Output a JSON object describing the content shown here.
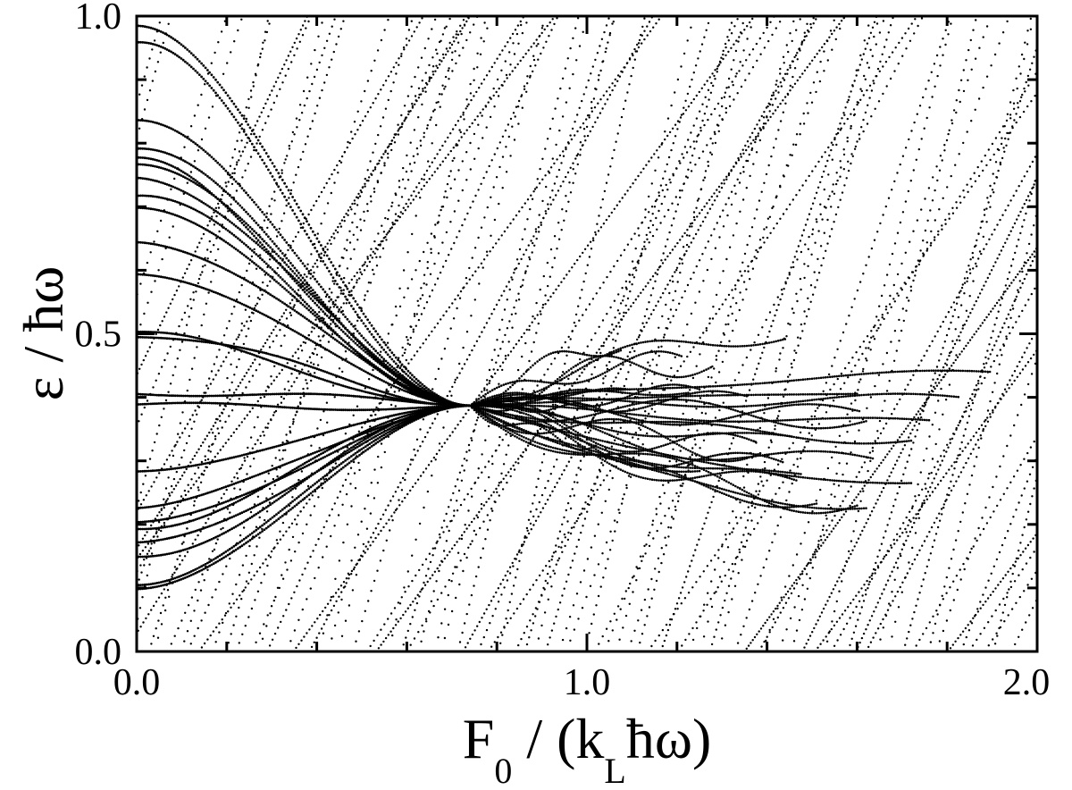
{
  "chart_data": {
    "type": "scatter",
    "title": "",
    "xlabel": {
      "main": "F",
      "sub": "0",
      "rest_open": " / (k",
      "sub2": "L",
      "rest_close": "ħω)"
    },
    "ylabel": "ε / ħω",
    "xlim": [
      0.0,
      2.0
    ],
    "ylim": [
      0.0,
      1.0
    ],
    "x_ticks": [
      {
        "value": 0.0,
        "label": "0.0"
      },
      {
        "value": 1.0,
        "label": "1.0"
      },
      {
        "value": 2.0,
        "label": "2.0"
      }
    ],
    "y_ticks": [
      {
        "value": 0.0,
        "label": "0.0"
      },
      {
        "value": 0.5,
        "label": "0.5"
      },
      {
        "value": 1.0,
        "label": "1.0"
      }
    ],
    "x_minor_step": 0.2,
    "y_minor_step": 0.1,
    "grid": false,
    "legend": "none",
    "marker_color": "#000000",
    "bundle": {
      "crossing_point": {
        "x": 0.74,
        "y": 0.387
      },
      "levels": [
        {
          "y0": 0.0982
        },
        {
          "y0": 0.1045
        },
        {
          "y0": 0.1492
        },
        {
          "y0": 0.1716
        },
        {
          "y0": 0.1928
        },
        {
          "y0": 0.2034
        },
        {
          "y0": 0.2257
        },
        {
          "y0": 0.2834
        },
        {
          "y0": 0.3887
        },
        {
          "y0": 0.4052
        },
        {
          "y0": 0.4947
        },
        {
          "y0": 0.5029
        },
        {
          "y0": 0.5936
        },
        {
          "y0": 0.6442
        },
        {
          "y0": 0.6984
        },
        {
          "y0": 0.7172
        },
        {
          "y0": 0.7455
        },
        {
          "y0": 0.7667
        },
        {
          "y0": 0.7773
        },
        {
          "y0": 0.7914
        },
        {
          "y0": 0.8362
        },
        {
          "y0": 0.9587
        },
        {
          "y0": 0.9847
        }
      ]
    },
    "steep_level_count": 90,
    "after_crossing_branch_count": 30
  }
}
